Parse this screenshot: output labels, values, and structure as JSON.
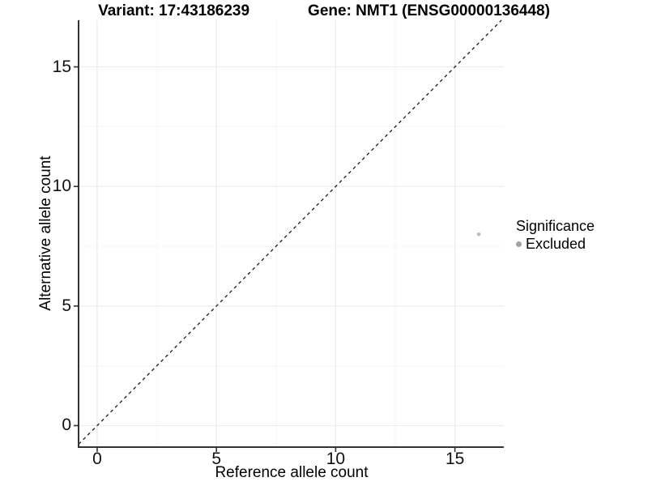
{
  "title": {
    "variant": "Variant: 17:43186239",
    "gene": "Gene: NMT1 (ENSG00000136448)"
  },
  "chart_data": {
    "type": "scatter",
    "title": "Variant: 17:43186239  /  Gene: NMT1 (ENSG00000136448)",
    "xlabel": "Reference allele count",
    "ylabel": "Alternative allele count",
    "points": [
      {
        "x": 16,
        "y": 8,
        "group": "Excluded"
      }
    ],
    "xlim": [
      -0.78,
      17.05
    ],
    "ylim": [
      -0.9,
      16.95
    ],
    "x_ticks": [
      0,
      5,
      10,
      15
    ],
    "y_ticks": [
      0,
      5,
      10,
      15
    ],
    "x_minor_ticks": [
      2.5,
      7.5,
      12.5
    ],
    "y_minor_ticks": [
      2.5,
      7.5,
      12.5
    ],
    "grid": "major and minor gridlines on white background",
    "reference_line": {
      "type": "identity",
      "equation": "y = x",
      "style": "dashed"
    },
    "legend": {
      "title": "Significance",
      "position": "right",
      "entries": [
        {
          "label": "Excluded",
          "color": "#a1a1a1"
        }
      ]
    }
  },
  "colors": {
    "background": "#ffffff",
    "axis_line": "#333333",
    "tick_mark": "#333333",
    "grid_major": "#ebebeb",
    "grid_minor": "#f5f5f5",
    "identity_line": "#1a1a1a",
    "point": "#b9b9b9",
    "text": "#000000"
  }
}
